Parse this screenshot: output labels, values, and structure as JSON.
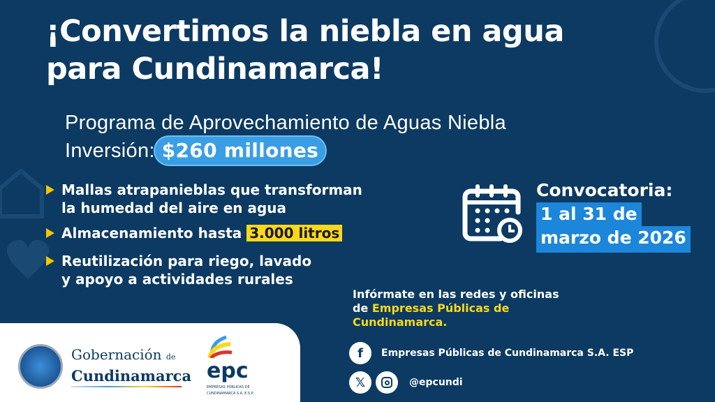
{
  "title": {
    "line1": "¡Convertimos la niebla en agua",
    "line2": "para Cundinamarca!"
  },
  "program": {
    "name": "Programa de Aprovechamiento de Aguas Niebla",
    "investment_label": "Inversión:",
    "investment_value": "$260 millones"
  },
  "bullets": [
    {
      "line1": "Mallas atrapanieblas que transforman",
      "line2": "la humedad del aire en agua"
    },
    {
      "pre": "Almacenamiento hasta ",
      "highlight": "3.000 litros"
    },
    {
      "line1": "Reutilización para riego, lavado",
      "line2": "y apoyo a actividades rurales"
    }
  ],
  "call": {
    "label": "Convocatoria:",
    "date1": "1 al 31 de",
    "date2": "marzo de 2026",
    "icon": "calendar-clock-icon"
  },
  "info": {
    "line1": "Infórmate en las redes y oficinas",
    "pre": "de ",
    "org1": "Empresas Públicas de",
    "org2": "Cundinamarca."
  },
  "social": {
    "facebook": "Empresas Públicas de Cundinamarca S.A. ESP",
    "handle": "@epcundi"
  },
  "logos": {
    "gob_line1": "Gobernación",
    "gob_de": "de",
    "gob_line2": "Cundinamarca",
    "epc": "epc",
    "epc_sub1": "EMPRESAS PÚBLICAS DE",
    "epc_sub2": "CUNDINAMARCA S.A. E.S.P."
  },
  "colors": {
    "background": "#0c3a62",
    "accent_yellow": "#f9d81c",
    "accent_blue": "#1c86da"
  }
}
